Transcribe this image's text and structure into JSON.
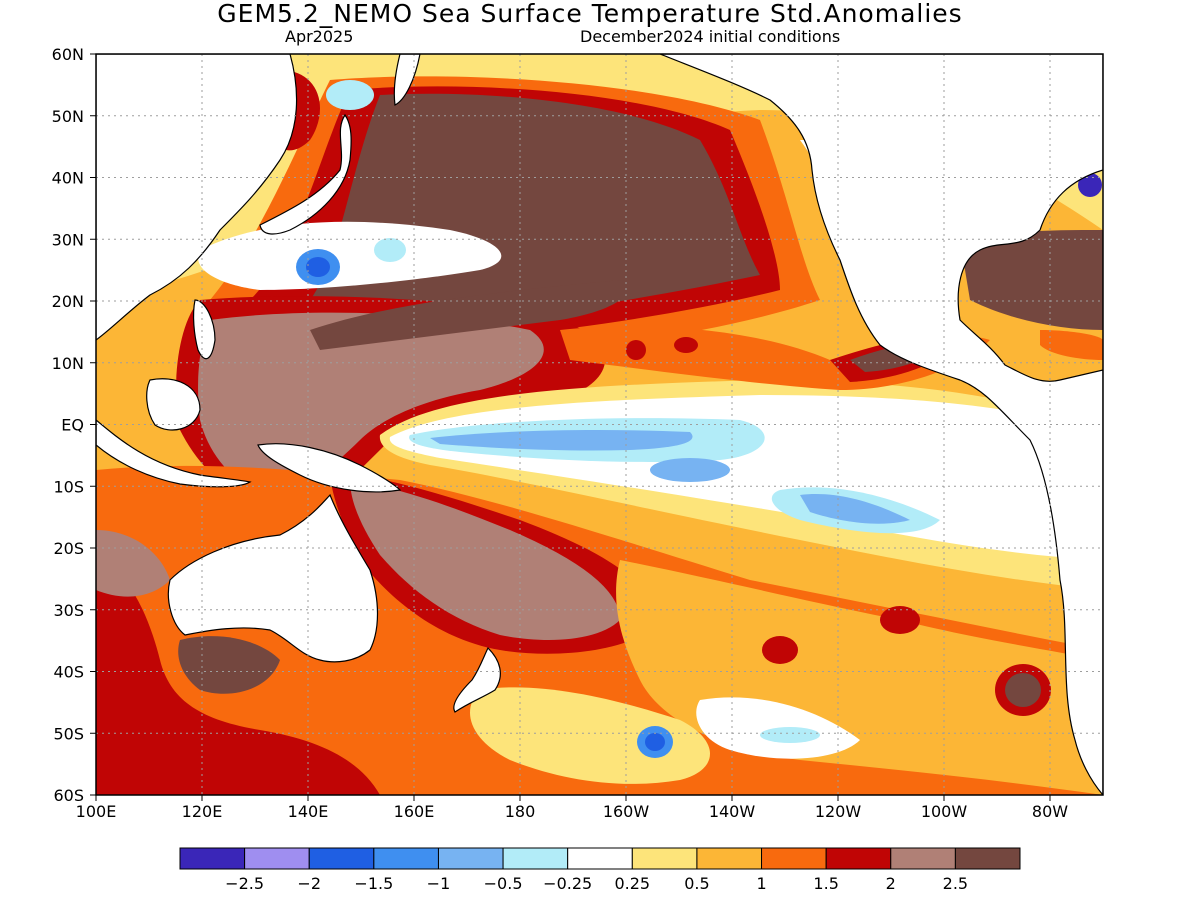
{
  "title": "GEM5.2_NEMO Sea Surface Temperature Std.Anomalies",
  "subtitle_left": "Apr2025",
  "subtitle_right": "December2024 initial conditions",
  "lat_labels": [
    "60N",
    "50N",
    "40N",
    "30N",
    "20N",
    "10N",
    "EQ",
    "10S",
    "20S",
    "30S",
    "40S",
    "50S",
    "60S"
  ],
  "lat_values": [
    60,
    50,
    40,
    30,
    20,
    10,
    0,
    -10,
    -20,
    -30,
    -40,
    -50,
    -60
  ],
  "lon_labels": [
    "100E",
    "120E",
    "140E",
    "160E",
    "180",
    "160W",
    "140W",
    "120W",
    "100W",
    "80W"
  ],
  "lon_values": [
    100,
    120,
    140,
    160,
    180,
    200,
    220,
    240,
    260,
    280
  ],
  "map_extent": {
    "lon_min": 100,
    "lon_max": 290,
    "lat_min": -60,
    "lat_max": 60
  },
  "colorbar": {
    "colors": [
      "#3a26b8",
      "#9f8ef0",
      "#1f5fe3",
      "#3f8ff0",
      "#77b3f2",
      "#b2ecf8",
      "#ffffff",
      "#fde47a",
      "#fcb636",
      "#f86a0e",
      "#c00505",
      "#b08076",
      "#74473f"
    ],
    "labels": [
      "−2.5",
      "−2",
      "−1.5",
      "−1",
      "−0.5",
      "−0.25",
      "0.25",
      "0.5",
      "1",
      "1.5",
      "2",
      "2.5"
    ]
  }
}
